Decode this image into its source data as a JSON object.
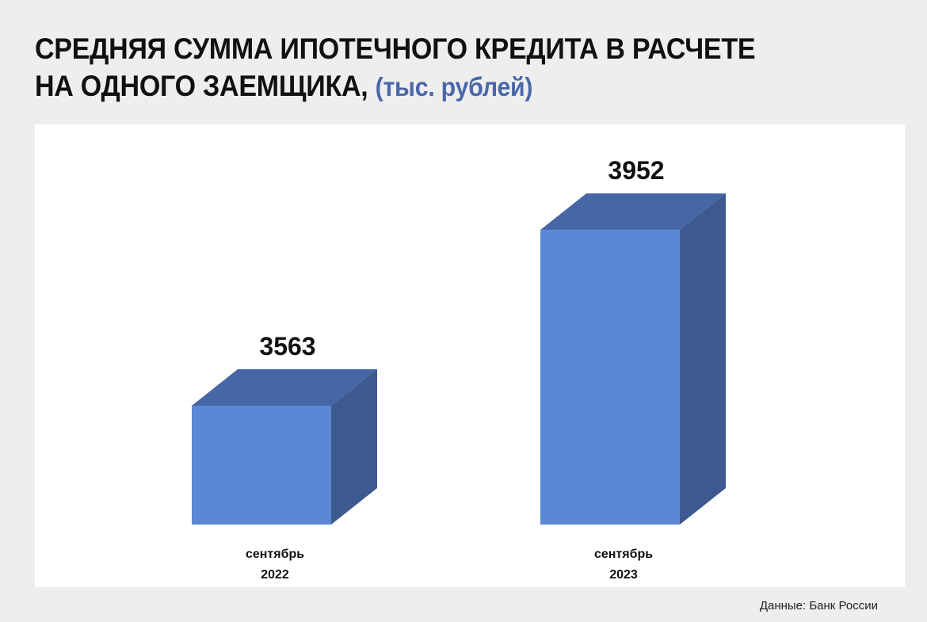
{
  "header": {
    "title_line1": "СРЕДНЯЯ СУММА ИПОТЕЧНОГО КРЕДИТА В РАСЧЕТЕ",
    "title_line2": "НА ОДНОГО ЗАЕМЩИКА,",
    "unit": "(тыс. рублей)"
  },
  "source": "Данные: Банк России",
  "colors": {
    "front": "#5b87d6",
    "top": "#4766a5",
    "side": "#3c5a8f",
    "accent": "#4a67a8"
  },
  "chart_data": {
    "type": "bar",
    "categories": [
      [
        "сентябрь",
        "2022"
      ],
      [
        "сентябрь",
        "2023"
      ]
    ],
    "values": [
      3563,
      3952
    ],
    "title": "СРЕДНЯЯ СУММА ИПОТЕЧНОГО КРЕДИТА В РАСЧЕТЕ НА ОДНОГО ЗАЕМЩИКА, (тыс. рублей)",
    "xlabel": "",
    "ylabel": "",
    "grid": false,
    "legend": "none"
  }
}
